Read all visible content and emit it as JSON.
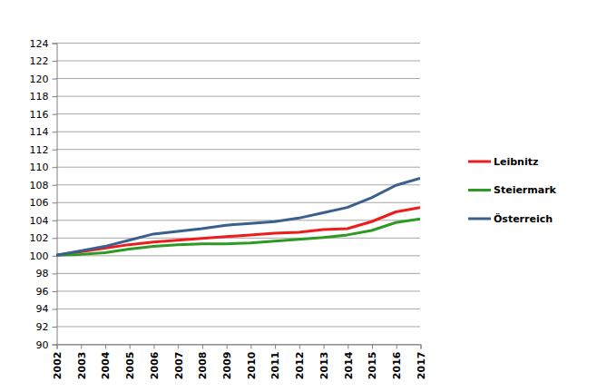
{
  "chart_data": {
    "type": "line",
    "x": [
      2002,
      2003,
      2004,
      2005,
      2006,
      2007,
      2008,
      2009,
      2010,
      2011,
      2012,
      2013,
      2014,
      2015,
      2016,
      2017
    ],
    "xlim": [
      2002,
      2017
    ],
    "xticks": [
      2002,
      2003,
      2004,
      2005,
      2006,
      2007,
      2008,
      2009,
      2010,
      2011,
      2012,
      2013,
      2014,
      2015,
      2016,
      2017
    ],
    "ylim": [
      90,
      124
    ],
    "yticks": [
      90,
      92,
      94,
      96,
      98,
      100,
      102,
      104,
      106,
      108,
      110,
      112,
      114,
      116,
      118,
      120,
      122,
      124
    ],
    "grid": true,
    "legend": "right",
    "series": [
      {
        "name": "Leibnitz",
        "color": "#ee1c1c",
        "values": [
          100,
          100.4,
          100.8,
          101.2,
          101.5,
          101.7,
          101.9,
          102.1,
          102.3,
          102.5,
          102.6,
          102.9,
          103.0,
          103.8,
          104.9,
          105.4
        ]
      },
      {
        "name": "Steiermark",
        "color": "#2e9a23",
        "values": [
          100,
          100.1,
          100.3,
          100.7,
          101.0,
          101.2,
          101.3,
          101.3,
          101.4,
          101.6,
          101.8,
          102.0,
          102.3,
          102.8,
          103.7,
          104.1
        ]
      },
      {
        "name": "Österreich",
        "color": "#3b5f8f",
        "values": [
          100,
          100.5,
          101.0,
          101.7,
          102.4,
          102.7,
          103.0,
          103.4,
          103.6,
          103.8,
          104.2,
          104.8,
          105.4,
          106.5,
          107.9,
          108.7
        ]
      }
    ]
  }
}
